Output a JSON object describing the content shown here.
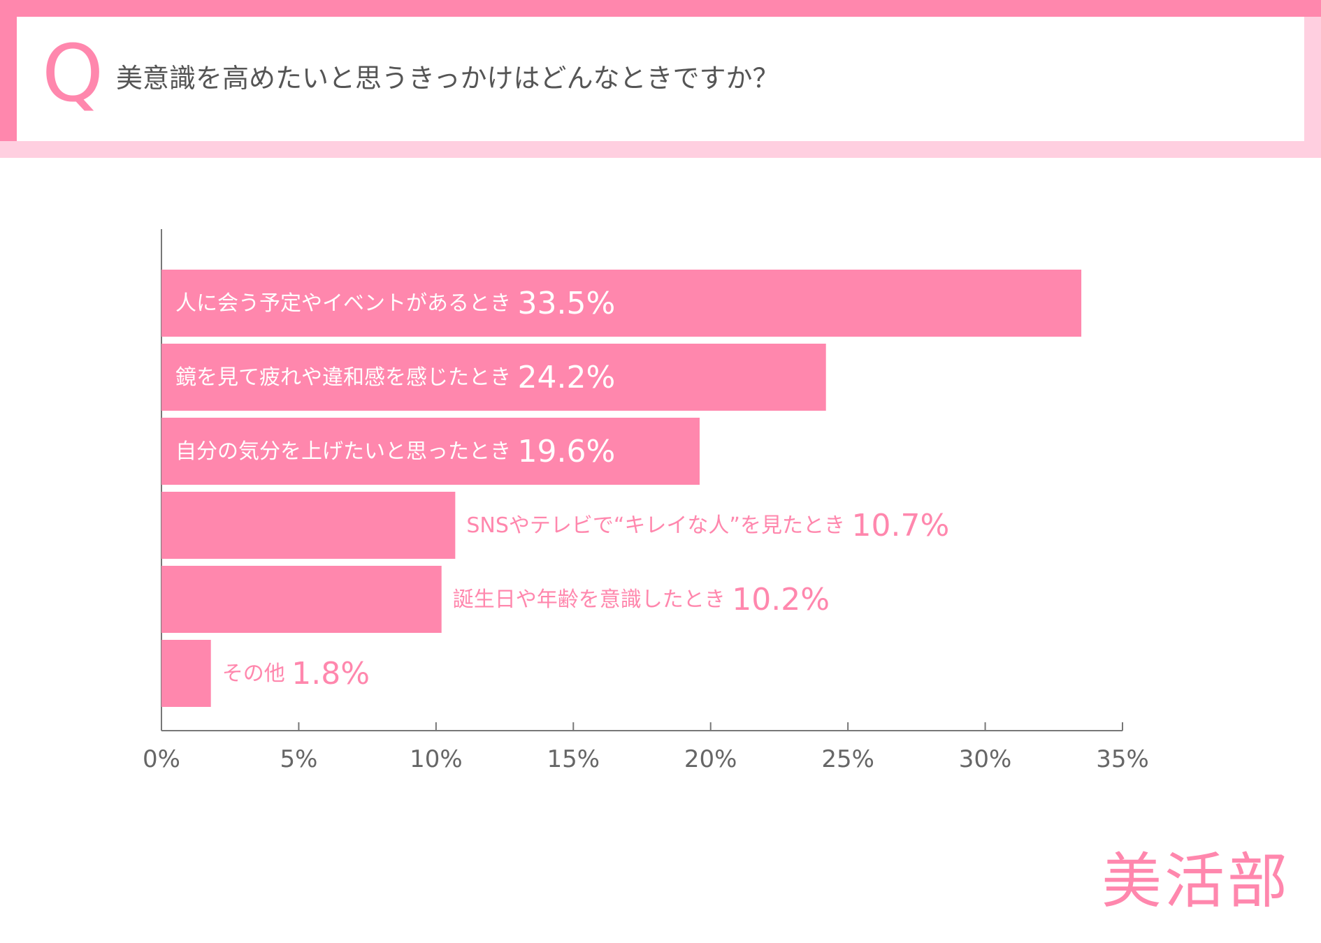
{
  "question": {
    "mark": "Q",
    "text": "美意識を高めたいと思うきっかけはどんなときですか？"
  },
  "brand": {
    "logo_text": "美活部"
  },
  "colors": {
    "accent": "#ff87ad",
    "accent_light": "#ffcfe0",
    "text_gray": "#555555",
    "axis": "#777777"
  },
  "chart_data": {
    "type": "bar",
    "orientation": "horizontal",
    "categories": [
      "人に会う予定やイベントがあるとき",
      "鏡を見て疲れや違和感を感じたとき",
      "自分の気分を上げたいと思ったとき",
      "SNSやテレビで“キレイな人”を見たとき",
      "誕生日や年齢を意識したとき",
      "その他"
    ],
    "values": [
      33.5,
      24.2,
      19.6,
      10.7,
      10.2,
      1.8
    ],
    "value_labels": [
      "33.5%",
      "24.2%",
      "19.6%",
      "10.7%",
      "10.2%",
      "1.8%"
    ],
    "xlim": [
      0,
      35
    ],
    "xticks": [
      0,
      5,
      10,
      15,
      20,
      25,
      30,
      35
    ],
    "xtick_labels": [
      "0%",
      "5%",
      "10%",
      "15%",
      "20%",
      "25%",
      "30%",
      "35%"
    ],
    "grid": false,
    "legend": "none"
  }
}
